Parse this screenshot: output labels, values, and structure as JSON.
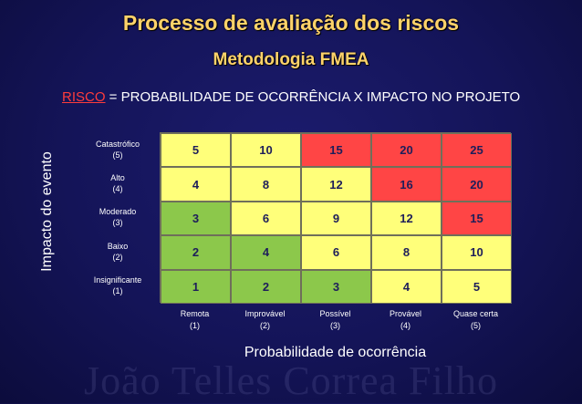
{
  "slide": {
    "title": "Processo de avaliação dos riscos",
    "subtitle": "Metodologia FMEA",
    "formula": {
      "risk_word": "RISCO",
      "rest": " = PROBABILIDADE DE OCORRÊNCIA X IMPACTO NO PROJETO"
    },
    "y_axis_label": "Impacto do evento",
    "x_axis_label": "Probabilidade de ocorrência",
    "watermark": "João Telles Correa Filho"
  },
  "matrix": {
    "rows": [
      {
        "label": "Catastrófico",
        "level": "(5)"
      },
      {
        "label": "Alto",
        "level": "(4)"
      },
      {
        "label": "Moderado",
        "level": "(3)"
      },
      {
        "label": "Baixo",
        "level": "(2)"
      },
      {
        "label": "Insignificante",
        "level": "(1)"
      }
    ],
    "columns": [
      {
        "label": "Remota",
        "level": "(1)"
      },
      {
        "label": "Improvável",
        "level": "(2)"
      },
      {
        "label": "Possível",
        "level": "(3)"
      },
      {
        "label": "Provável",
        "level": "(4)"
      },
      {
        "label": "Quase certa",
        "level": "(5)"
      }
    ],
    "values": [
      [
        "5",
        "10",
        "15",
        "20",
        "25"
      ],
      [
        "4",
        "8",
        "12",
        "16",
        "20"
      ],
      [
        "3",
        "6",
        "9",
        "12",
        "15"
      ],
      [
        "2",
        "4",
        "6",
        "8",
        "10"
      ],
      [
        "1",
        "2",
        "3",
        "4",
        "5"
      ]
    ],
    "cell_colors": [
      [
        "yellow",
        "yellow",
        "red",
        "red",
        "red"
      ],
      [
        "yellow",
        "yellow",
        "yellow",
        "red",
        "red"
      ],
      [
        "green",
        "yellow",
        "yellow",
        "yellow",
        "red"
      ],
      [
        "green",
        "green",
        "yellow",
        "yellow",
        "yellow"
      ],
      [
        "green",
        "green",
        "green",
        "yellow",
        "yellow"
      ]
    ],
    "palette": {
      "green": "#8cc84b",
      "yellow": "#ffff7a",
      "red": "#ff4545"
    }
  }
}
